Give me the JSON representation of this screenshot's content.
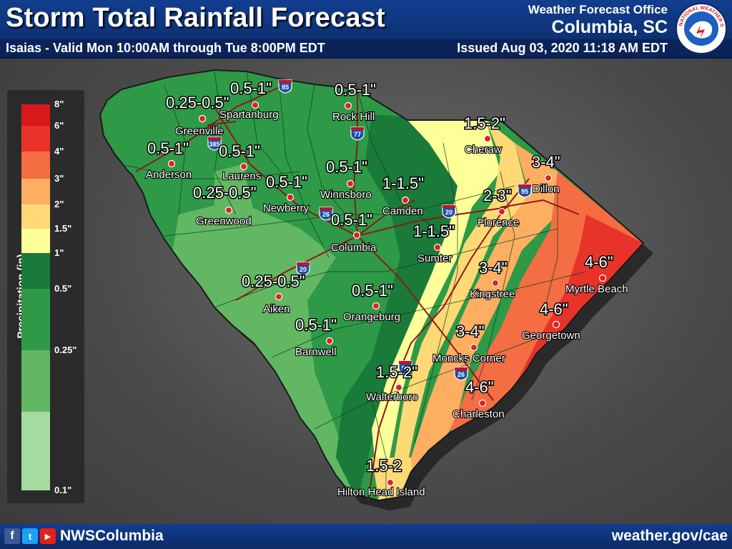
{
  "header": {
    "title": "Storm Total Rainfall Forecast",
    "subtitle": "Isaias - Valid Mon 10:00AM through Tue 8:00PM EDT",
    "office_line1": "Weather Forecast Office",
    "office_line2": "Columbia, SC",
    "issued": "Issued Aug 03, 2020 11:18 AM EDT",
    "seal_text": "NATIONAL WEATHER SERVICE"
  },
  "legend": {
    "title": "Precipitation (in)",
    "levels": [
      {
        "label": "8\"",
        "color": "#d7191c"
      },
      {
        "label": "6\"",
        "color": "#e8332a"
      },
      {
        "label": "4\"",
        "color": "#f46d43"
      },
      {
        "label": "3\"",
        "color": "#fdae61"
      },
      {
        "label": "2\"",
        "color": "#fed976"
      },
      {
        "label": "1.5\"",
        "color": "#ffff99"
      },
      {
        "label": "1\"",
        "color": "#1a7a3a"
      },
      {
        "label": "0.5\"",
        "color": "#2e9a47"
      },
      {
        "label": "0.25\"",
        "color": "#62b862"
      },
      {
        "label": "0.1\"",
        "color": "#a6dba0"
      }
    ]
  },
  "cities": [
    {
      "name": "Spartanburg"
    },
    {
      "name": "Greenville"
    },
    {
      "name": "Anderson"
    },
    {
      "name": "Laurens"
    },
    {
      "name": "Greenwood"
    },
    {
      "name": "Newberry"
    },
    {
      "name": "Rock Hill"
    },
    {
      "name": "Winnsboro"
    },
    {
      "name": "Camden"
    },
    {
      "name": "Columbia"
    },
    {
      "name": "Sumter"
    },
    {
      "name": "Cheraw"
    },
    {
      "name": "Dillon"
    },
    {
      "name": "Florence"
    },
    {
      "name": "Kingstree"
    },
    {
      "name": "Myrtle Beach"
    },
    {
      "name": "Georgetown"
    },
    {
      "name": "Aiken"
    },
    {
      "name": "Orangeburg"
    },
    {
      "name": "Barnwell"
    },
    {
      "name": "Moncks Corner"
    },
    {
      "name": "Walterboro"
    },
    {
      "name": "Charleston"
    },
    {
      "name": "Hilton Head Island"
    }
  ],
  "amounts": [
    {
      "text": "0.5-1\""
    },
    {
      "text": "0.5-1\""
    },
    {
      "text": "0.25-0.5\""
    },
    {
      "text": "0.5-1\""
    },
    {
      "text": "0.5-1\""
    },
    {
      "text": "0.5-1\""
    },
    {
      "text": "0.5-1\""
    },
    {
      "text": "0.25-0.5\""
    },
    {
      "text": "1-1.5\""
    },
    {
      "text": "0.5-1\""
    },
    {
      "text": "1-1.5\""
    },
    {
      "text": "1.5-2\""
    },
    {
      "text": "3-4\""
    },
    {
      "text": "2-3\""
    },
    {
      "text": "3-4\""
    },
    {
      "text": "4-6\""
    },
    {
      "text": "4-6\""
    },
    {
      "text": "0.25-0.5\""
    },
    {
      "text": "0.5-1\""
    },
    {
      "text": "0.5-1\""
    },
    {
      "text": "3-4\""
    },
    {
      "text": "1.5-2\""
    },
    {
      "text": "4-6\""
    },
    {
      "text": "1.5-2"
    }
  ],
  "interstates": [
    "85",
    "77",
    "385",
    "26",
    "20",
    "95",
    "26",
    "20",
    "95"
  ],
  "footer": {
    "handle": "NWSColumbia",
    "website": "weather.gov/cae",
    "fb_glyph": "f",
    "tw_glyph": "t",
    "yt_glyph": "▶"
  }
}
